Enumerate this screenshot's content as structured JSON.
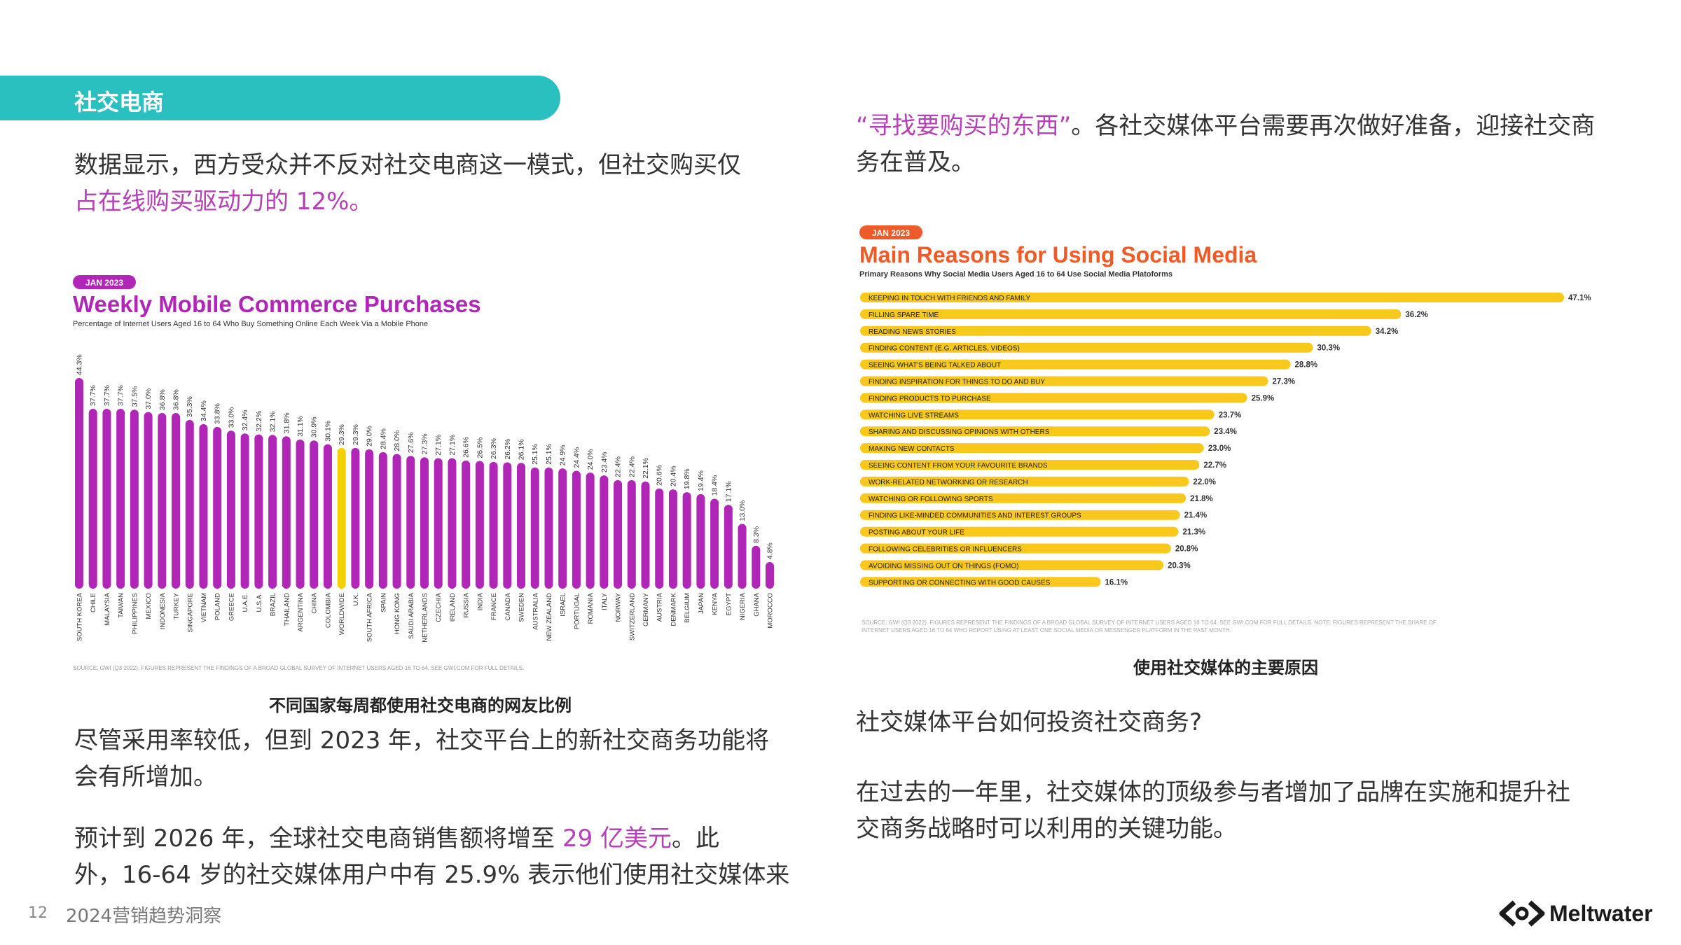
{
  "section_title": "社交电商",
  "left": {
    "intro_text": "数据显示，西方受众并不反对社交电商这一模式，但社交购买仅",
    "intro_highlight": "占在线购买驱动力的 12%。",
    "chart_caption": "不同国家每周都使用社交电商的网友比例",
    "para2_line1": "尽管采用率较低，但到 2023 年，社交平台上的新社交商务功能将",
    "para2_line2": "会有所增加。",
    "para3_pre": "预计到 2026 年，全球社交电商销售额将增至 ",
    "para3_highlight": "29 亿美元",
    "para3_post": "。此",
    "para3_line2": "外，16-64 岁的社交媒体用户中有 25.9% 表示他们使用社交媒体来"
  },
  "right": {
    "quote_highlight": "“寻找要购买的东西”",
    "quote_rest": "。各社交媒体平台需要再次做好准备，迎接社交商",
    "quote_line2": "务在普及。",
    "chart_caption": "使用社交媒体的主要原因",
    "question": "社交媒体平台如何投资社交商务?",
    "para_line1": "在过去的一年里，社交媒体的顶级参与者增加了品牌在实施和提升社",
    "para_line2": "交商务战略时可以利用的关键功能。"
  },
  "footer": {
    "page_number": "12",
    "doc_title": "2024营销趋势洞察",
    "brand": "Meltwater"
  },
  "colors": {
    "teal": "#2bc0c0",
    "purple": "#b026b6",
    "highlight_bar": "#f5d000",
    "bar_yellow": "#f8c81c",
    "badge": "#ef5a2a"
  },
  "chart_data": [
    {
      "type": "bar",
      "badge": "JAN 2023",
      "title": "Weekly Mobile Commerce Purchases",
      "subtitle": "Percentage of Internet Users Aged 16 to 64 Who Buy Something Online Each Week Via a Mobile Phone",
      "source": "SOURCE: GWI (Q3 2022). FIGURES REPRESENT THE FINDINGS OF A BROAD GLOBAL SURVEY OF INTERNET USERS AGED 16 TO 64. SEE GWI.COM FOR FULL DETAILS.",
      "highlight": "WORLDWIDE",
      "ylim": [
        0,
        44.3
      ],
      "categories": [
        "SOUTH KOREA",
        "CHILE",
        "MALAYSIA",
        "TAIWAN",
        "PHILIPPINES",
        "MEXICO",
        "INDONESIA",
        "TURKEY",
        "SINGAPORE",
        "VIETNAM",
        "POLAND",
        "GREECE",
        "U.A.E.",
        "U.S.A.",
        "BRAZIL",
        "THAILAND",
        "ARGENTINA",
        "CHINA",
        "COLOMBIA",
        "WORLDWIDE",
        "U.K.",
        "SOUTH AFRICA",
        "SPAIN",
        "HONG KONG",
        "SAUDI ARABIA",
        "NETHERLANDS",
        "CZECHIA",
        "IRELAND",
        "RUSSIA",
        "INDIA",
        "FRANCE",
        "CANADA",
        "SWEDEN",
        "AUSTRALIA",
        "NEW ZEALAND",
        "ISRAEL",
        "PORTUGAL",
        "ROMANIA",
        "ITALY",
        "NORWAY",
        "SWITZERLAND",
        "GERMANY",
        "AUSTRIA",
        "DENMARK",
        "BELGIUM",
        "JAPAN",
        "KENYA",
        "EGYPT",
        "NIGERIA",
        "GHANA",
        "MOROCCO"
      ],
      "values": [
        44.3,
        37.7,
        37.7,
        37.7,
        37.5,
        37.0,
        36.8,
        36.8,
        35.3,
        34.4,
        33.8,
        33.0,
        32.4,
        32.2,
        32.1,
        31.8,
        31.1,
        30.9,
        30.1,
        29.3,
        29.3,
        29.0,
        28.4,
        28.0,
        27.6,
        27.3,
        27.1,
        27.1,
        26.6,
        26.5,
        26.3,
        26.2,
        26.1,
        25.1,
        25.1,
        24.9,
        24.4,
        24.0,
        23.4,
        22.4,
        22.4,
        22.1,
        20.6,
        20.4,
        19.8,
        19.4,
        18.4,
        17.1,
        13.0,
        8.3,
        4.8
      ],
      "labels": [
        "44.3%",
        "37.7%",
        "37.7%",
        "37.7%",
        "37.5%",
        "37.0%",
        "36.8%",
        "36.8%",
        "35.3%",
        "34.4%",
        "33.8%",
        "33.0%",
        "32.4%",
        "32.2%",
        "32.1%",
        "31.8%",
        "31.1%",
        "30.9%",
        "30.1%",
        "29.3%",
        "29.3%",
        "29.0%",
        "28.4%",
        "28.0%",
        "27.6%",
        "27.3%",
        "27.1%",
        "27.1%",
        "26.6%",
        "26.5%",
        "26.3%",
        "26.2%",
        "26.1%",
        "25.1%",
        "25.1%",
        "24.9%",
        "24.4%",
        "24.0%",
        "23.4%",
        "22.4%",
        "22.4%",
        "22.1%",
        "20.6%",
        "20.4%",
        "19.8%",
        "19.4%",
        "18.4%",
        "17.1%",
        "13.0%",
        "8.3%",
        "4.8%"
      ]
    },
    {
      "type": "bar",
      "orientation": "horizontal",
      "badge": "JAN 2023",
      "title": "Main Reasons for Using Social Media",
      "subtitle": "Primary Reasons Why Social Media Users Aged 16 to 64 Use Social Media Platoforms",
      "source_line1": "SOURCE: GWI (Q3 2022). FIGURES REPRESENT THE FINDINGS OF A BROAD GLOBAL SURVEY OF INTERNET USERS AGED 16 TO 64. SEE GWI.COM FOR FULL DETAILS. NOTE: FIGURES REPRESENT THE SHARE OF",
      "source_line2": "INTERNET USERS AGED 16 TO 64 WHO REPORT USING AT LEAST ONE SOCIAL MEDIA OR MESSENGER PLATFORM IN THE PAST MONTH.",
      "xlim": [
        0,
        47.1
      ],
      "categories": [
        "KEEPING IN TOUCH WITH FRIENDS AND FAMILY",
        "FILLING SPARE TIME",
        "READING NEWS STORIES",
        "FINDING CONTENT (E.G. ARTICLES, VIDEOS)",
        "SEEING WHAT'S BEING TALKED ABOUT",
        "FINDING INSPIRATION FOR THINGS TO DO AND BUY",
        "FINDING PRODUCTS TO PURCHASE",
        "WATCHING LIVE STREAMS",
        "SHARING AND DISCUSSING OPINIONS WITH OTHERS",
        "MAKING NEW CONTACTS",
        "SEEING CONTENT FROM YOUR FAVOURITE BRANDS",
        "WORK-RELATED NETWORKING OR RESEARCH",
        "WATCHING OR FOLLOWING SPORTS",
        "FINDING LIKE-MINDED COMMUNITIES AND INTEREST GROUPS",
        "POSTING ABOUT YOUR LIFE",
        "FOLLOWING CELEBRITIES OR INFLUENCERS",
        "AVOIDING MISSING OUT ON THINGS (FOMO)",
        "SUPPORTING OR CONNECTING WITH GOOD CAUSES"
      ],
      "values": [
        47.1,
        36.2,
        34.2,
        30.3,
        28.8,
        27.3,
        25.9,
        23.7,
        23.4,
        23.0,
        22.7,
        22.0,
        21.8,
        21.4,
        21.3,
        20.8,
        20.3,
        16.1
      ],
      "labels": [
        "47.1%",
        "36.2%",
        "34.2%",
        "30.3%",
        "28.8%",
        "27.3%",
        "25.9%",
        "23.7%",
        "23.4%",
        "23.0%",
        "22.7%",
        "22.0%",
        "21.8%",
        "21.4%",
        "21.3%",
        "20.8%",
        "20.3%",
        "16.1%"
      ]
    }
  ]
}
